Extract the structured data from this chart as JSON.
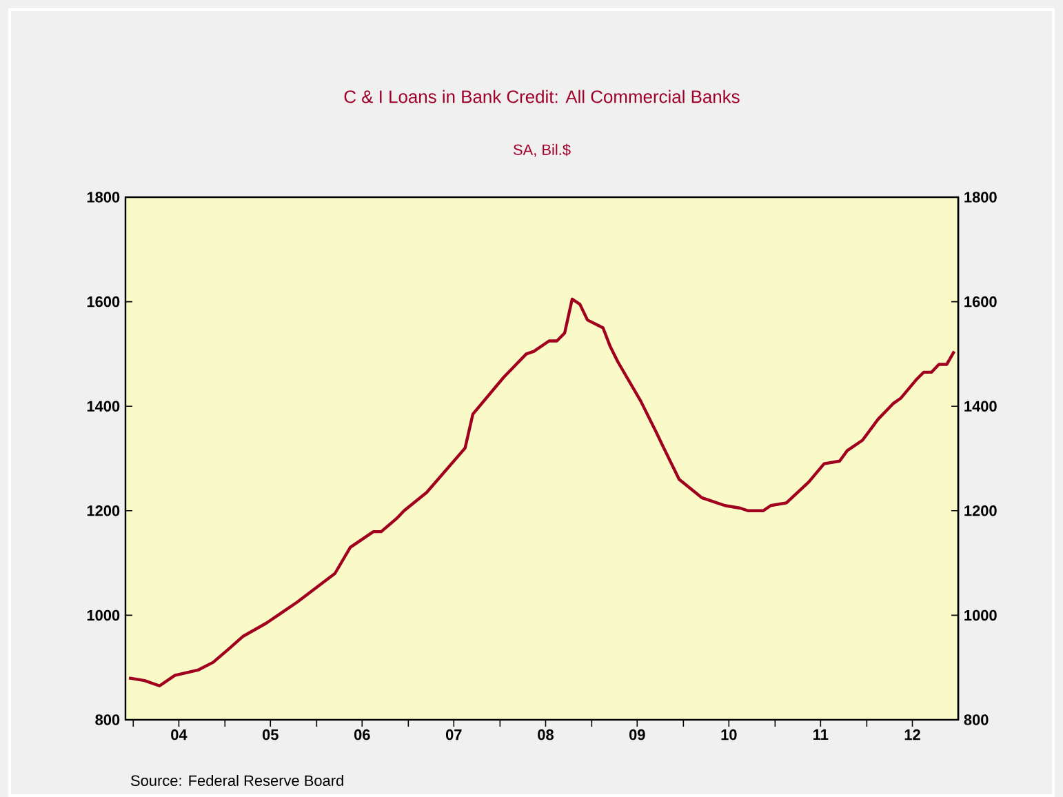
{
  "chart_data": {
    "type": "line",
    "title": "C & I Loans in Bank Credit: All Commercial Banks",
    "subtitle": "SA, Bil.$",
    "annotations": [
      "Source:  Federal Reserve Board"
    ],
    "x": [
      "2003-12-15",
      "2004-02-15",
      "2004-04-15",
      "2004-06-15",
      "2004-09-15",
      "2004-11-15",
      "2005-01-15",
      "2005-03-15",
      "2005-06-15",
      "2005-08-15",
      "2005-10-15",
      "2006-03-15",
      "2006-05-15",
      "2006-08-15",
      "2006-09-15",
      "2006-11-15",
      "2006-12-15",
      "2007-03-15",
      "2007-08-15",
      "2007-09-15",
      "2008-01-15",
      "2008-04-15",
      "2008-05-15",
      "2008-07-15",
      "2008-08-15",
      "2008-09-15",
      "2008-10-15",
      "2008-11-15",
      "2008-12-15",
      "2009-02-15",
      "2009-03-15",
      "2009-04-15",
      "2009-07-15",
      "2009-09-15",
      "2009-10-15",
      "2009-12-15",
      "2010-03-15",
      "2010-06-15",
      "2010-08-15",
      "2010-09-15",
      "2010-11-15",
      "2010-12-15",
      "2011-02-15",
      "2011-05-15",
      "2011-07-15",
      "2011-09-15",
      "2011-10-15",
      "2011-12-15",
      "2012-02-15",
      "2012-04-15",
      "2012-05-15",
      "2012-07-15",
      "2012-08-15",
      "2012-09-15",
      "2012-10-15",
      "2012-11-15",
      "2012-12-15"
    ],
    "series": [
      {
        "color": "#a0001e",
        "values": [
          880,
          875,
          865,
          885,
          895,
          910,
          935,
          960,
          985,
          1005,
          1025,
          1080,
          1130,
          1160,
          1160,
          1185,
          1200,
          1235,
          1320,
          1385,
          1455,
          1500,
          1505,
          1525,
          1525,
          1540,
          1605,
          1595,
          1565,
          1550,
          1515,
          1485,
          1410,
          1350,
          1320,
          1260,
          1225,
          1210,
          1205,
          1200,
          1200,
          1210,
          1215,
          1255,
          1290,
          1295,
          1315,
          1335,
          1375,
          1405,
          1415,
          1450,
          1465,
          1465,
          1480,
          1480,
          1505
        ]
      }
    ],
    "xlim": [
      "2003-12-01",
      "2012-12-31"
    ],
    "xticks": [
      {
        "value": "2004-01-01",
        "label": null
      },
      {
        "value": "2004-07-01",
        "label": "04"
      },
      {
        "value": "2005-01-01",
        "label": null
      },
      {
        "value": "2005-07-01",
        "label": "05"
      },
      {
        "value": "2006-01-01",
        "label": null
      },
      {
        "value": "2006-07-01",
        "label": "06"
      },
      {
        "value": "2007-01-01",
        "label": null
      },
      {
        "value": "2007-07-01",
        "label": "07"
      },
      {
        "value": "2008-01-01",
        "label": null
      },
      {
        "value": "2008-07-01",
        "label": "08"
      },
      {
        "value": "2009-01-01",
        "label": null
      },
      {
        "value": "2009-07-01",
        "label": "09"
      },
      {
        "value": "2010-01-01",
        "label": null
      },
      {
        "value": "2010-07-01",
        "label": "10"
      },
      {
        "value": "2011-01-01",
        "label": null
      },
      {
        "value": "2011-07-01",
        "label": "11"
      },
      {
        "value": "2012-01-01",
        "label": null
      },
      {
        "value": "2012-07-01",
        "label": "12"
      }
    ],
    "ylim": [
      800,
      1800
    ],
    "yticks": [
      800,
      1000,
      1200,
      1400,
      1600,
      1800
    ],
    "y2lim": [
      800,
      1800
    ],
    "y2ticks": [
      800,
      1000,
      1200,
      1400,
      1600,
      1800
    ],
    "line_style": "solid",
    "marker": "none",
    "grid": false
  }
}
